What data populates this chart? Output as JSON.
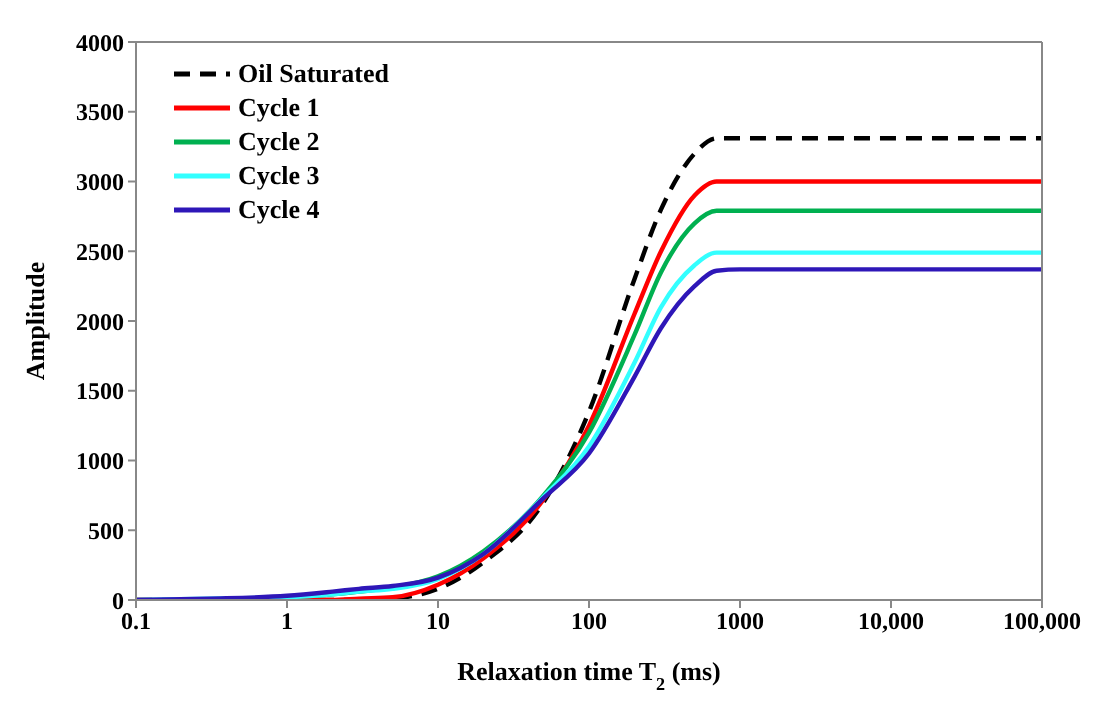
{
  "chart_data": {
    "type": "line",
    "xlabel": "Relaxation time T$_{2}$ (ms)",
    "ylabel": "Amplitude",
    "log": "x",
    "x": [
      0.1,
      0.3,
      1,
      2,
      3,
      5,
      10,
      20,
      50,
      100,
      200,
      300,
      500,
      700,
      1000,
      100000
    ],
    "series": [
      {
        "name": "Oil Saturated",
        "color": "#000000",
        "line_style": "dashed",
        "values": [
          0,
          0,
          0,
          0,
          0,
          10,
          80,
          270,
          700,
          1350,
          2300,
          2800,
          3200,
          3310,
          3310,
          3310
        ]
      },
      {
        "name": "Cycle 1",
        "color": "#ff0000",
        "line_style": "solid",
        "values": [
          0,
          0,
          0,
          0,
          10,
          20,
          110,
          300,
          720,
          1250,
          2050,
          2500,
          2900,
          3000,
          3000,
          3000
        ]
      },
      {
        "name": "Cycle 2",
        "color": "#00b050",
        "line_style": "solid",
        "values": [
          null,
          null,
          20,
          40,
          60,
          90,
          170,
          350,
          750,
          1200,
          1900,
          2350,
          2700,
          2790,
          2790,
          2790
        ]
      },
      {
        "name": "Cycle 3",
        "color": "#33ffff",
        "line_style": "solid",
        "values": [
          0,
          10,
          20,
          40,
          60,
          80,
          150,
          330,
          740,
          1100,
          1700,
          2100,
          2400,
          2490,
          2490,
          2490
        ]
      },
      {
        "name": "Cycle 4",
        "color": "#2e17b8",
        "line_style": "solid",
        "values": [
          0,
          10,
          30,
          60,
          80,
          100,
          160,
          330,
          730,
          1050,
          1600,
          1950,
          2250,
          2360,
          2370,
          2370
        ]
      }
    ],
    "xlim": [
      0.1,
      100000
    ],
    "xticks": [
      0.1,
      1,
      10,
      100,
      1000,
      {
        "value": 10000,
        "label": "10,000"
      },
      {
        "value": 100000,
        "label": "100,000"
      }
    ],
    "ylim": [
      0,
      4000
    ],
    "yticks": [
      0,
      500,
      1000,
      1500,
      2000,
      2500,
      3000,
      3500,
      4000
    ],
    "legend": "top left",
    "grid": false,
    "marker": "none"
  }
}
